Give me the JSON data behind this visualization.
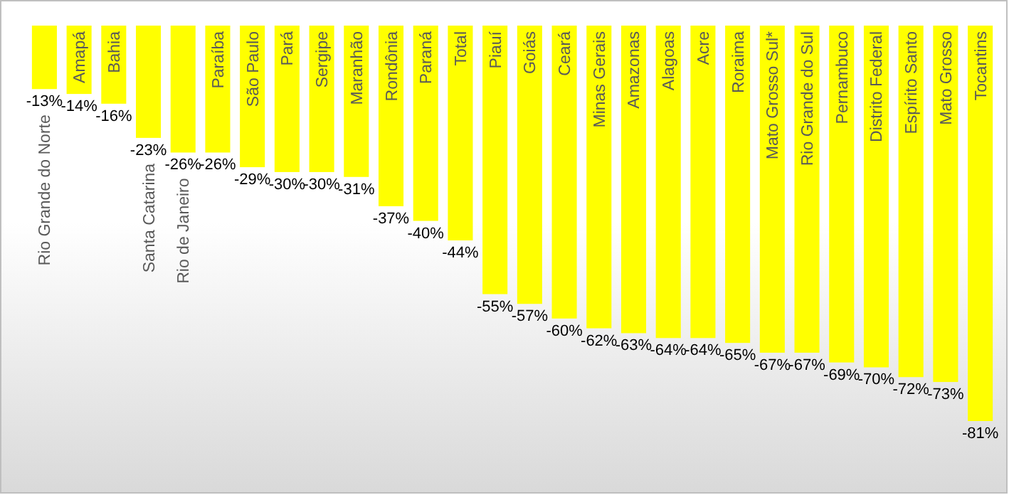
{
  "chart_data": {
    "type": "bar",
    "categories": [
      "Rio Grande do Norte",
      "Amapá",
      "Bahia",
      "Santa Catarina",
      "Rio de Janeiro",
      "Paraíba",
      "São Paulo",
      "Pará",
      "Sergipe",
      "Maranhão",
      "Rondônia",
      "Paraná",
      "Total",
      "Piauí",
      "Goiás",
      "Ceará",
      "Minas Gerais",
      "Amazonas",
      "Alagoas",
      "Acre",
      "Roraima",
      "Mato Grosso Sul*",
      "Rio Grande do Sul",
      "Pernambuco",
      "Distrito Federal",
      "Espírito Santo",
      "Mato Grosso",
      "Tocantins"
    ],
    "values": [
      -13,
      -14,
      -16,
      -23,
      -26,
      -26,
      -29,
      -30,
      -30,
      -31,
      -37,
      -40,
      -44,
      -55,
      -57,
      -60,
      -62,
      -63,
      -64,
      -64,
      -65,
      -67,
      -67,
      -69,
      -70,
      -72,
      -73,
      -81
    ],
    "value_labels": [
      "-13%",
      "-14%",
      "-16%",
      "-23%",
      "-26%",
      "-26%",
      "-29%",
      "-30%",
      "-30%",
      "-31%",
      "-37%",
      "-40%",
      "-44%",
      "-55%",
      "-57%",
      "-60%",
      "-62%",
      "-63%",
      "-64%",
      "-64%",
      "-65%",
      "-67%",
      "-67%",
      "-69%",
      "-70%",
      "-72%",
      "-73%",
      "-81%"
    ],
    "color": "#ffff00"
  }
}
